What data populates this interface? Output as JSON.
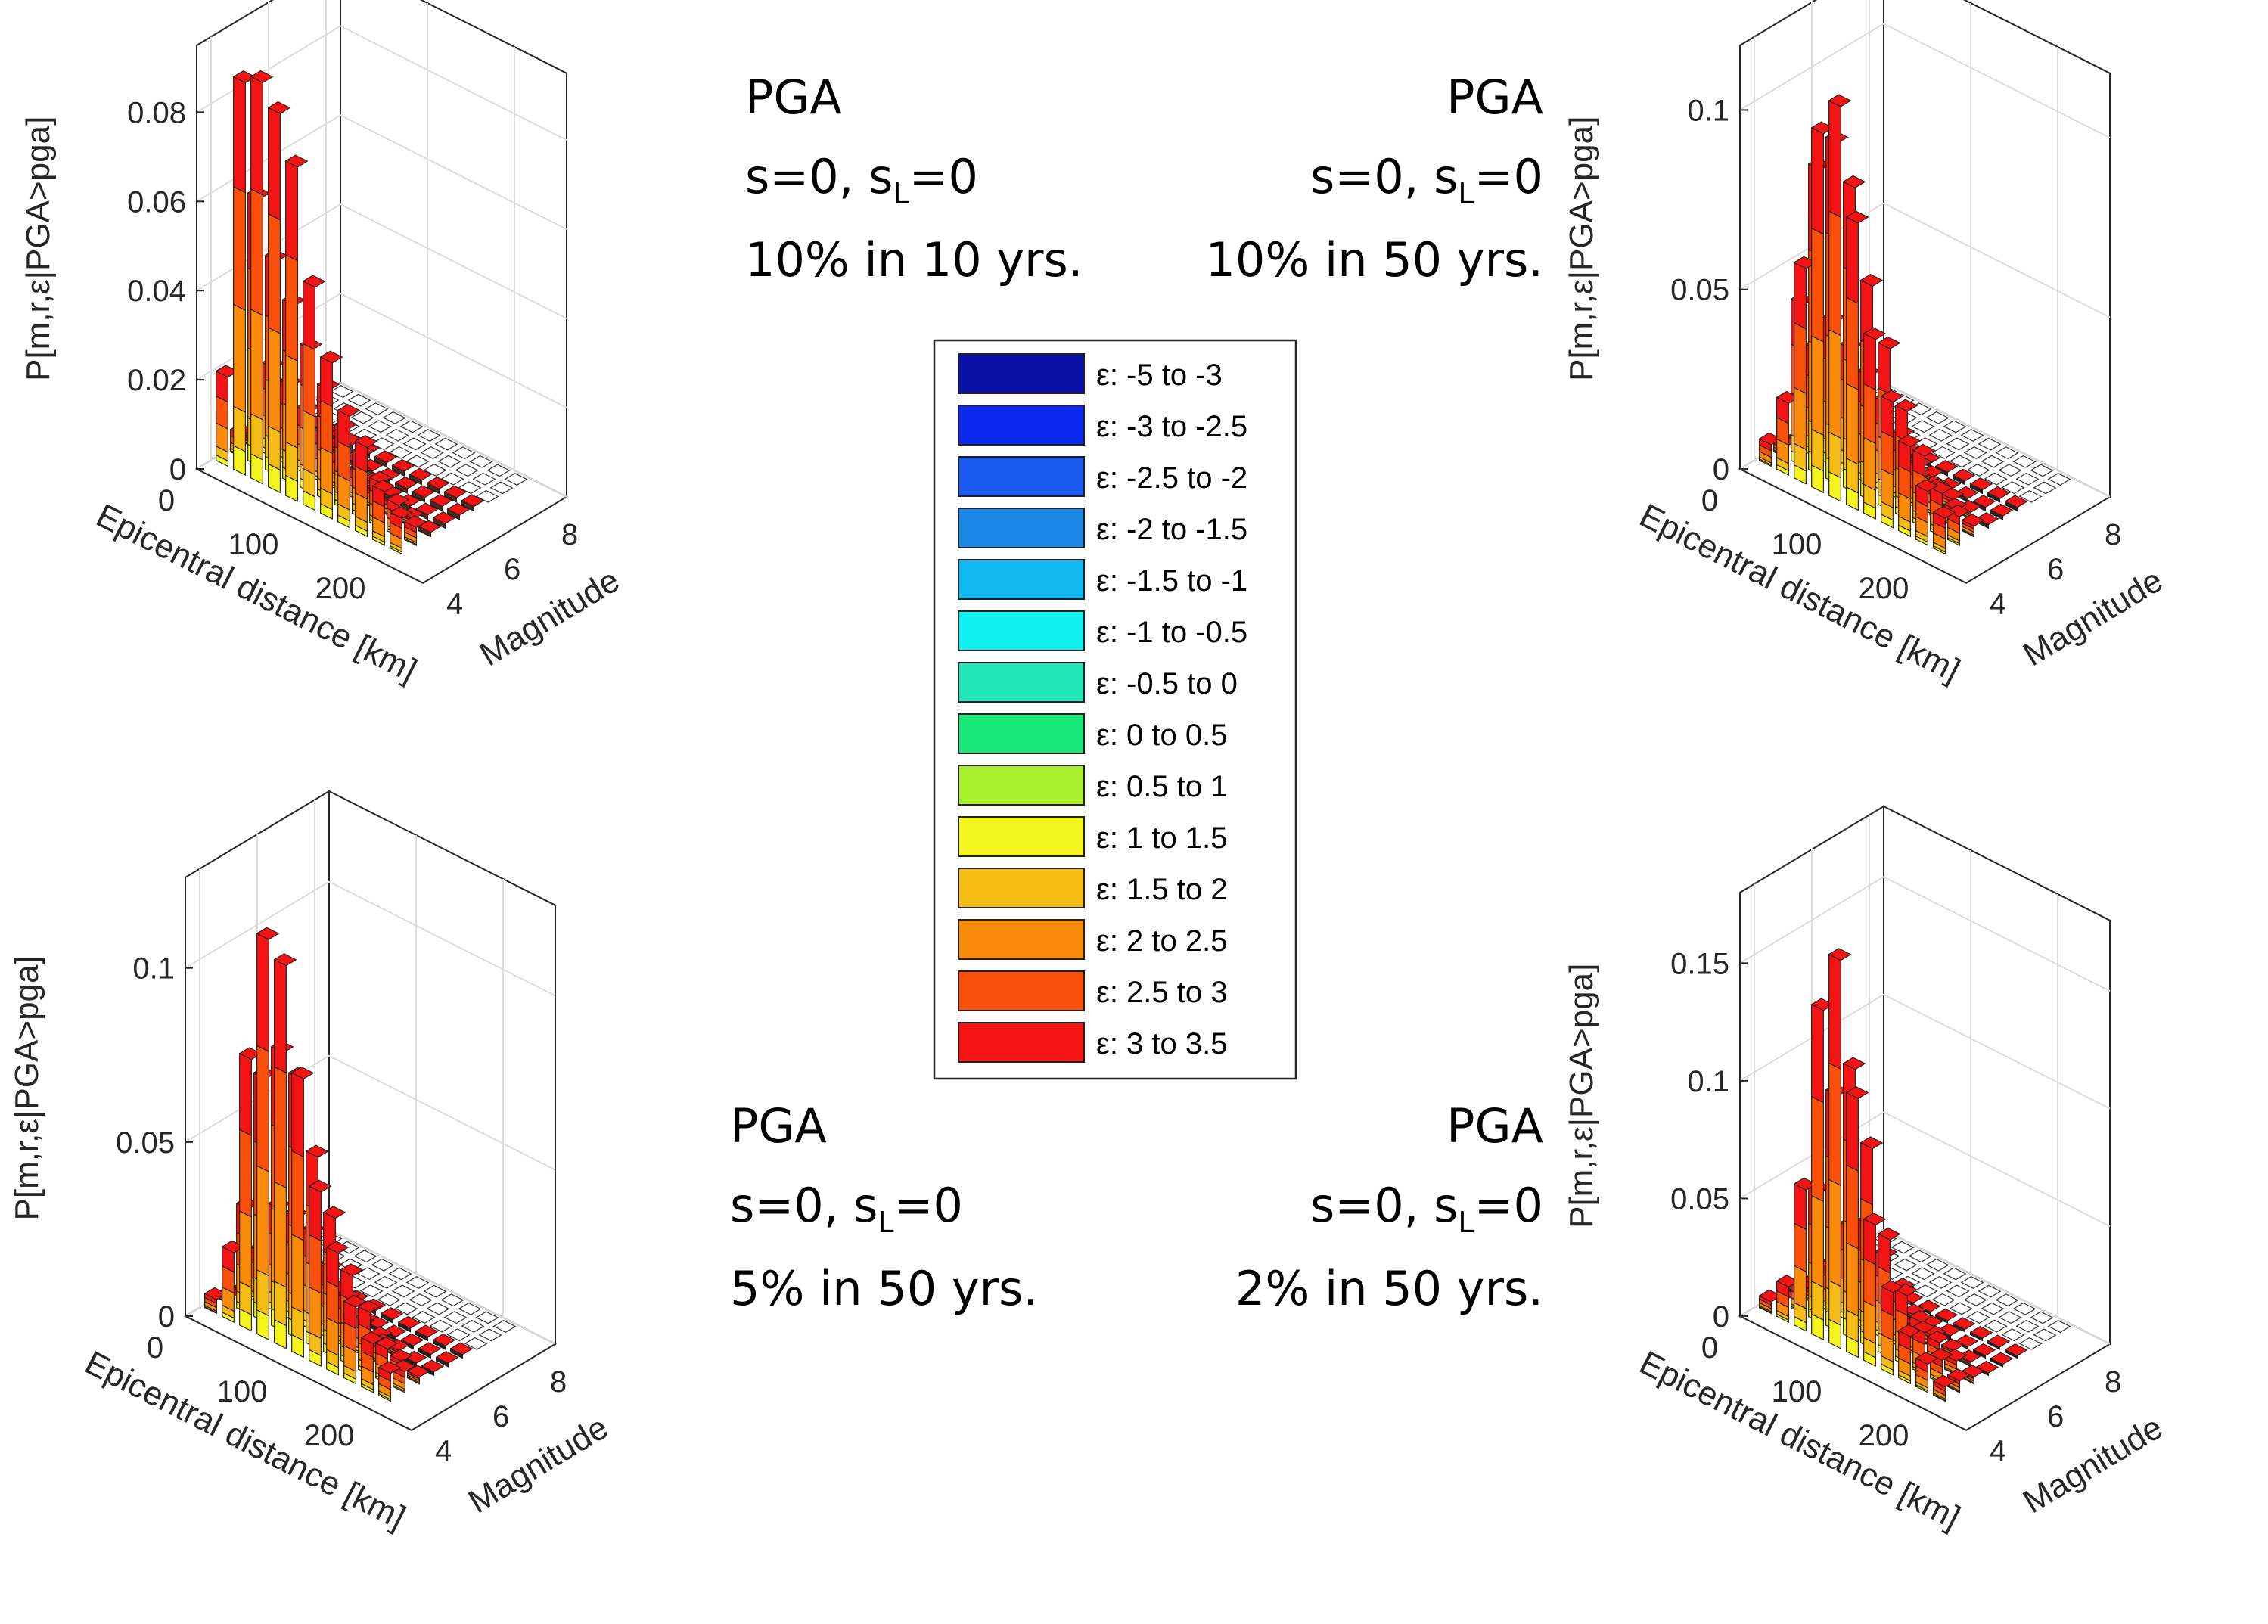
{
  "figure": "4-panel 3D disaggregation bar charts (PGA)",
  "legend": {
    "entries": [
      {
        "label": "ε: -5 to -3",
        "color": "#0a10a8"
      },
      {
        "label": "ε: -3 to -2.5",
        "color": "#0a28f0"
      },
      {
        "label": "ε: -2.5 to -2",
        "color": "#1a5af0"
      },
      {
        "label": "ε: -2 to -1.5",
        "color": "#1a86e6"
      },
      {
        "label": "ε: -1.5 to -1",
        "color": "#12b8f0"
      },
      {
        "label": "ε: -1 to -0.5",
        "color": "#10f0f0"
      },
      {
        "label": "ε: -0.5 to 0",
        "color": "#22e6b8"
      },
      {
        "label": "ε: 0 to 0.5",
        "color": "#18e87a"
      },
      {
        "label": "ε: 0.5 to 1",
        "color": "#a8f02c"
      },
      {
        "label": "ε: 1 to 1.5",
        "color": "#f5f51e"
      },
      {
        "label": "ε: 1.5 to 2",
        "color": "#f5bc14"
      },
      {
        "label": "ε: 2 to 2.5",
        "color": "#fa8a0a"
      },
      {
        "label": "ε: 2.5 to 3",
        "color": "#fa500a"
      },
      {
        "label": "ε: 3 to 3.5",
        "color": "#f51414"
      }
    ]
  },
  "chart_data": [
    {
      "type": "bar3d",
      "annotation": [
        "PGA",
        "s=0, s",
        "L",
        "=0",
        "10% in 10 yrs."
      ],
      "ylabel": "P[m,r,ε|PGA>pga]",
      "xlabel": "Epicentral distance [km]",
      "mlabel": "Magnitude",
      "z_ticks": [
        "0",
        "0.02",
        "0.04",
        "0.06",
        "0.08"
      ],
      "z_tick_values": [
        0,
        0.02,
        0.04,
        0.06,
        0.08
      ],
      "zmax": 0.095,
      "r_ticks": [
        "0",
        "100",
        "200"
      ],
      "m_ticks": [
        "4",
        "6",
        "8"
      ],
      "magnitude_bins": [
        4.25,
        4.75,
        5.25,
        5.75,
        6.25,
        6.75,
        7.25,
        7.75,
        8.25
      ],
      "distance_bins_km": [
        10,
        30,
        50,
        70,
        90,
        110,
        130,
        150,
        170,
        190,
        210
      ],
      "totals": [
        [
          0.02,
          0.088,
          0.09,
          0.085,
          0.075,
          0.05,
          0.035,
          0.025,
          0.02,
          0.012,
          0.008
        ],
        [
          0.005,
          0.06,
          0.048,
          0.04,
          0.032,
          0.025,
          0.018,
          0.014,
          0.01,
          0.007,
          0.004
        ],
        [
          0.002,
          0.02,
          0.018,
          0.014,
          0.011,
          0.008,
          0.006,
          0.004,
          0.003,
          0.002,
          0.001
        ],
        [
          0.001,
          0.006,
          0.005,
          0.004,
          0.003,
          0.002,
          0.002,
          0.001,
          0.001,
          0.001,
          0.001
        ],
        [
          0.001,
          0.002,
          0.002,
          0.002,
          0.001,
          0.001,
          0.001,
          0.001,
          0.001,
          0.001,
          0.001
        ],
        [
          0.001,
          0.001,
          0.001,
          0.001,
          0.001,
          0.001,
          0.001,
          0.001,
          0.001,
          0.001,
          0.001
        ],
        [
          0,
          0,
          0,
          0,
          0,
          0,
          0,
          0,
          0,
          0,
          0
        ],
        [
          0,
          0,
          0,
          0,
          0,
          0,
          0,
          0,
          0,
          0,
          0
        ],
        [
          0,
          0,
          0,
          0,
          0,
          0,
          0,
          0,
          0,
          0,
          0
        ]
      ]
    },
    {
      "type": "bar3d",
      "annotation": [
        "PGA",
        "s=0, s",
        "L",
        "=0",
        "10% in 50 yrs."
      ],
      "ylabel": "P[m,r,ε|PGA>pga]",
      "xlabel": "Epicentral distance [km]",
      "mlabel": "Magnitude",
      "z_ticks": [
        "0",
        "0.05",
        "0.1"
      ],
      "z_tick_values": [
        0,
        0.05,
        0.1
      ],
      "zmax": 0.118,
      "r_ticks": [
        "0",
        "100",
        "200"
      ],
      "m_ticks": [
        "4",
        "6",
        "8"
      ],
      "magnitude_bins": [
        4.25,
        4.75,
        5.25,
        5.75,
        6.25,
        6.75,
        7.25,
        7.75,
        8.25
      ],
      "distance_bins_km": [
        10,
        30,
        50,
        70,
        90,
        110,
        130,
        150,
        170,
        190,
        210
      ],
      "totals": [
        [
          0.006,
          0.02,
          0.06,
          0.1,
          0.11,
          0.08,
          0.05,
          0.035,
          0.025,
          0.015,
          0.01
        ],
        [
          0.003,
          0.045,
          0.085,
          0.095,
          0.085,
          0.06,
          0.045,
          0.03,
          0.02,
          0.012,
          0.008
        ],
        [
          0.002,
          0.03,
          0.04,
          0.035,
          0.03,
          0.025,
          0.018,
          0.012,
          0.008,
          0.005,
          0.003
        ],
        [
          0.001,
          0.008,
          0.01,
          0.009,
          0.008,
          0.006,
          0.005,
          0.004,
          0.003,
          0.002,
          0.001
        ],
        [
          0.001,
          0.002,
          0.003,
          0.003,
          0.002,
          0.002,
          0.002,
          0.001,
          0.001,
          0.001,
          0.001
        ],
        [
          0.001,
          0.001,
          0.001,
          0.001,
          0.001,
          0.001,
          0.001,
          0.001,
          0.001,
          0.001,
          0.001
        ],
        [
          0,
          0,
          0,
          0,
          0,
          0,
          0,
          0,
          0,
          0,
          0
        ],
        [
          0,
          0,
          0,
          0,
          0,
          0,
          0,
          0,
          0,
          0,
          0
        ],
        [
          0,
          0,
          0,
          0,
          0,
          0,
          0,
          0,
          0,
          0,
          0
        ]
      ]
    },
    {
      "type": "bar3d",
      "annotation": [
        "PGA",
        "s=0, s",
        "L",
        "=0",
        "5% in 50 yrs."
      ],
      "ylabel": "P[m,r,ε|PGA>pga]",
      "xlabel": "Epicentral distance [km]",
      "mlabel": "Magnitude",
      "z_ticks": [
        "0",
        "0.05",
        "0.1"
      ],
      "z_tick_values": [
        0,
        0.05,
        0.1
      ],
      "zmax": 0.126,
      "r_ticks": [
        "0",
        "100",
        "200"
      ],
      "m_ticks": [
        "4",
        "6",
        "8"
      ],
      "magnitude_bins": [
        4.25,
        4.75,
        5.25,
        5.75,
        6.25,
        6.75,
        7.25,
        7.75,
        8.25
      ],
      "distance_bins_km": [
        10,
        30,
        50,
        70,
        90,
        110,
        130,
        150,
        170,
        190,
        210
      ],
      "totals": [
        [
          0.004,
          0.02,
          0.078,
          0.115,
          0.11,
          0.08,
          0.05,
          0.035,
          0.022,
          0.014,
          0.008
        ],
        [
          0.002,
          0.03,
          0.07,
          0.08,
          0.075,
          0.055,
          0.04,
          0.026,
          0.018,
          0.01,
          0.006
        ],
        [
          0.001,
          0.015,
          0.03,
          0.03,
          0.028,
          0.02,
          0.014,
          0.01,
          0.006,
          0.004,
          0.002
        ],
        [
          0.001,
          0.004,
          0.008,
          0.008,
          0.007,
          0.005,
          0.004,
          0.003,
          0.002,
          0.001,
          0.001
        ],
        [
          0.001,
          0.002,
          0.002,
          0.002,
          0.002,
          0.001,
          0.001,
          0.001,
          0.001,
          0.001,
          0.001
        ],
        [
          0.001,
          0.001,
          0.001,
          0.001,
          0.001,
          0.001,
          0.001,
          0.001,
          0.001,
          0.001,
          0.001
        ],
        [
          0,
          0,
          0,
          0,
          0,
          0,
          0,
          0,
          0,
          0,
          0
        ],
        [
          0,
          0,
          0,
          0,
          0,
          0,
          0,
          0,
          0,
          0,
          0
        ],
        [
          0,
          0,
          0,
          0,
          0,
          0,
          0,
          0,
          0,
          0,
          0
        ]
      ]
    },
    {
      "type": "bar3d",
      "annotation": [
        "PGA",
        "s=0, s",
        "L",
        "=0",
        "2% in 50 yrs."
      ],
      "ylabel": "P[m,r,ε|PGA>pga]",
      "xlabel": "Epicentral distance [km]",
      "mlabel": "Magnitude",
      "z_ticks": [
        "0",
        "0.05",
        "0.1",
        "0.15"
      ],
      "z_tick_values": [
        0,
        0.05,
        0.1,
        0.15
      ],
      "zmax": 0.18,
      "r_ticks": [
        "0",
        "100",
        "200"
      ],
      "m_ticks": [
        "4",
        "6",
        "8"
      ],
      "magnitude_bins": [
        4.25,
        4.75,
        5.25,
        5.75,
        6.25,
        6.75,
        7.25,
        7.75,
        8.25
      ],
      "distance_bins_km": [
        10,
        30,
        50,
        70,
        90,
        110,
        130,
        150,
        170,
        190,
        210
      ],
      "totals": [
        [
          0.005,
          0.015,
          0.06,
          0.14,
          0.165,
          0.11,
          0.06,
          0.035,
          0.02,
          0.012,
          0.006
        ],
        [
          0.002,
          0.01,
          0.055,
          0.1,
          0.115,
          0.085,
          0.05,
          0.03,
          0.018,
          0.01,
          0.005
        ],
        [
          0.001,
          0.005,
          0.02,
          0.04,
          0.045,
          0.035,
          0.025,
          0.015,
          0.01,
          0.006,
          0.003
        ],
        [
          0.001,
          0.002,
          0.005,
          0.01,
          0.012,
          0.01,
          0.007,
          0.005,
          0.003,
          0.002,
          0.001
        ],
        [
          0.001,
          0.001,
          0.002,
          0.003,
          0.003,
          0.003,
          0.002,
          0.002,
          0.001,
          0.001,
          0.001
        ],
        [
          0.001,
          0.001,
          0.001,
          0.001,
          0.001,
          0.001,
          0.001,
          0.001,
          0.001,
          0.001,
          0.001
        ],
        [
          0,
          0,
          0,
          0,
          0,
          0,
          0,
          0,
          0,
          0,
          0
        ],
        [
          0,
          0,
          0,
          0,
          0,
          0,
          0,
          0,
          0,
          0,
          0
        ],
        [
          0,
          0,
          0,
          0,
          0,
          0,
          0,
          0,
          0,
          0,
          0
        ]
      ]
    }
  ]
}
